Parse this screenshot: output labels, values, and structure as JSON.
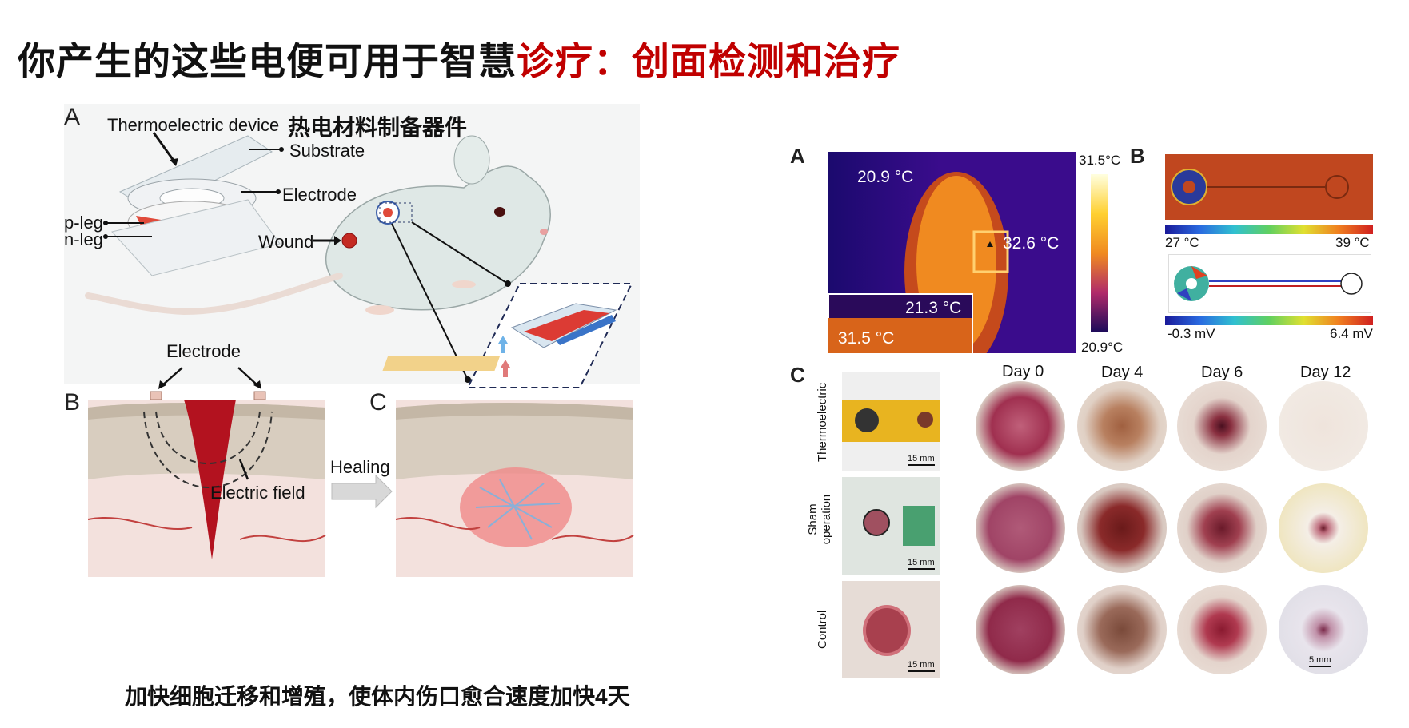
{
  "title": {
    "black": "你产生的这些电便可用于智慧",
    "red": "诊疗：创面检测和治疗"
  },
  "left": {
    "panel_a": "A",
    "panel_b": "B",
    "panel_c": "C",
    "thermo_device": "Thermoelectric device",
    "zh_label": "热电材料制备器件",
    "substrate": "Substrate",
    "electrode": "Electrode",
    "p_leg": "p-leg",
    "n_leg": "n-leg",
    "wound": "Wound",
    "electrode_b": "Electrode",
    "electric_field": "Electric field",
    "healing": "Healing"
  },
  "caption": "加快细胞迁移和增殖，使体内伤口愈合速度加快4天",
  "right": {
    "panel_a": "A",
    "panel_b": "B",
    "panel_c": "C",
    "thermal": {
      "bg_temp": "20.9 °C",
      "device_temp": "32.6 °C",
      "inset_top": "21.3 °C",
      "inset_bottom": "31.5 °C",
      "scale_max": "31.5°C",
      "scale_min": "20.9°C"
    },
    "sim": {
      "temp_min": "27 °C",
      "temp_max": "39 °C",
      "volt_min": "-0.3 mV",
      "volt_max": "6.4 mV"
    },
    "days": [
      "Day 0",
      "Day 4",
      "Day 6",
      "Day 12"
    ],
    "rows": [
      "Thermoelectric",
      "Sham operation",
      "Control"
    ],
    "scale_15": "15 mm",
    "scale_5": "5 mm"
  },
  "colors": {
    "title_red": "#c00000",
    "wound_red": "#b01020",
    "thermal_orange": "#f08a20",
    "sim_bg": "#c0471f"
  }
}
